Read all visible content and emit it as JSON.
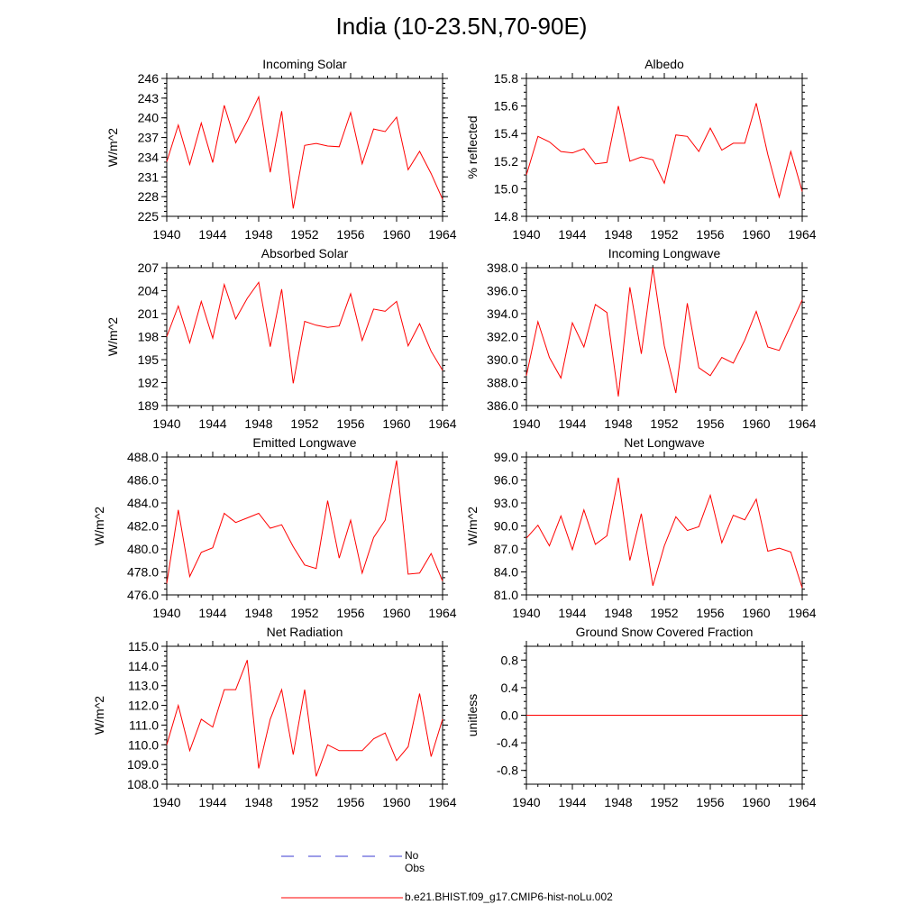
{
  "title": "India (10-23.5N,70-90E)",
  "legend": [
    {
      "label": "No Obs",
      "color": "#3a3ad0",
      "dashed": true
    },
    {
      "label": "b.e21.BHIST.f09_g17.CMIP6-hist-noLu.002",
      "color": "#ff0000",
      "dashed": false
    }
  ],
  "chart_data": [
    {
      "type": "line",
      "title": "Incoming Solar",
      "ylabel": "W/m^2",
      "xlim": [
        1940,
        1964
      ],
      "ylim": [
        225,
        246
      ],
      "yticks": [
        "225",
        "228",
        "231",
        "234",
        "237",
        "240",
        "243",
        "246"
      ],
      "xticks": [
        "1940",
        "1944",
        "1948",
        "1952",
        "1956",
        "1960",
        "1964"
      ],
      "series": [
        {
          "x": [
            1940,
            1941,
            1942,
            1943,
            1944,
            1945,
            1946,
            1947,
            1948,
            1949,
            1950,
            1951,
            1952,
            1953,
            1954,
            1955,
            1956,
            1957,
            1958,
            1959,
            1960,
            1961,
            1962,
            1963,
            1964
          ],
          "values": [
            233.3,
            238.9,
            232.9,
            239.2,
            233.2,
            241.9,
            236.2,
            239.5,
            243.2,
            231.7,
            241.0,
            226.2,
            235.8,
            236.1,
            235.7,
            235.6,
            240.8,
            233.0,
            238.3,
            237.9,
            240.1,
            232.1,
            234.9,
            231.5,
            227.6
          ]
        }
      ]
    },
    {
      "type": "line",
      "title": "Albedo",
      "ylabel": "% reflected",
      "xlim": [
        1940,
        1964
      ],
      "ylim": [
        14.8,
        15.8
      ],
      "yticks": [
        "14.8",
        "15.0",
        "15.2",
        "15.4",
        "15.6",
        "15.8"
      ],
      "xticks": [
        "1940",
        "1944",
        "1948",
        "1952",
        "1956",
        "1960",
        "1964"
      ],
      "series": [
        {
          "x": [
            1940,
            1941,
            1942,
            1943,
            1944,
            1945,
            1946,
            1947,
            1948,
            1949,
            1950,
            1951,
            1952,
            1953,
            1954,
            1955,
            1956,
            1957,
            1958,
            1959,
            1960,
            1961,
            1962,
            1963,
            1964
          ],
          "values": [
            15.1,
            15.38,
            15.34,
            15.27,
            15.26,
            15.29,
            15.18,
            15.19,
            15.6,
            15.2,
            15.23,
            15.21,
            15.04,
            15.39,
            15.38,
            15.27,
            15.44,
            15.28,
            15.33,
            15.33,
            15.62,
            15.25,
            14.94,
            15.27,
            14.98
          ]
        }
      ]
    },
    {
      "type": "line",
      "title": "Absorbed Solar",
      "ylabel": "W/m^2",
      "xlim": [
        1940,
        1964
      ],
      "ylim": [
        189,
        207
      ],
      "yticks": [
        "189",
        "192",
        "195",
        "198",
        "201",
        "204",
        "207"
      ],
      "xticks": [
        "1940",
        "1944",
        "1948",
        "1952",
        "1956",
        "1960",
        "1964"
      ],
      "series": [
        {
          "x": [
            1940,
            1941,
            1942,
            1943,
            1944,
            1945,
            1946,
            1947,
            1948,
            1949,
            1950,
            1951,
            1952,
            1953,
            1954,
            1955,
            1956,
            1957,
            1958,
            1959,
            1960,
            1961,
            1962,
            1963,
            1964
          ],
          "values": [
            198.0,
            202.0,
            197.2,
            202.6,
            197.8,
            204.8,
            200.3,
            203.0,
            205.1,
            196.7,
            204.2,
            191.9,
            200.0,
            199.5,
            199.2,
            199.4,
            203.6,
            197.5,
            201.6,
            201.3,
            202.6,
            196.8,
            199.7,
            196.1,
            193.6
          ]
        }
      ]
    },
    {
      "type": "line",
      "title": "Incoming Longwave",
      "ylabel": "",
      "xlim": [
        1940,
        1964
      ],
      "ylim": [
        386.0,
        398.0
      ],
      "yticks": [
        "386.0",
        "388.0",
        "390.0",
        "392.0",
        "394.0",
        "396.0",
        "398.0"
      ],
      "xticks": [
        "1940",
        "1944",
        "1948",
        "1952",
        "1956",
        "1960",
        "1964"
      ],
      "series": [
        {
          "x": [
            1940,
            1941,
            1942,
            1943,
            1944,
            1945,
            1946,
            1947,
            1948,
            1949,
            1950,
            1951,
            1952,
            1953,
            1954,
            1955,
            1956,
            1957,
            1958,
            1959,
            1960,
            1961,
            1962,
            1963,
            1964
          ],
          "values": [
            388.6,
            393.3,
            390.2,
            388.4,
            393.2,
            391.1,
            394.8,
            394.1,
            386.8,
            396.3,
            390.5,
            398.0,
            391.2,
            387.1,
            394.9,
            389.3,
            388.6,
            390.2,
            389.7,
            391.7,
            394.2,
            391.1,
            390.8,
            393.0,
            395.2
          ]
        }
      ]
    },
    {
      "type": "line",
      "title": "Emitted Longwave",
      "ylabel": "W/m^2",
      "xlim": [
        1940,
        1964
      ],
      "ylim": [
        476.0,
        488.0
      ],
      "yticks": [
        "476.0",
        "478.0",
        "480.0",
        "482.0",
        "484.0",
        "486.0",
        "488.0"
      ],
      "xticks": [
        "1940",
        "1944",
        "1948",
        "1952",
        "1956",
        "1960",
        "1964"
      ],
      "series": [
        {
          "x": [
            1940,
            1941,
            1942,
            1943,
            1944,
            1945,
            1946,
            1947,
            1948,
            1949,
            1950,
            1951,
            1952,
            1953,
            1954,
            1955,
            1956,
            1957,
            1958,
            1959,
            1960,
            1961,
            1962,
            1963,
            1964
          ],
          "values": [
            477.0,
            483.4,
            477.6,
            479.7,
            480.1,
            483.1,
            482.3,
            482.7,
            483.1,
            481.8,
            482.1,
            480.2,
            478.6,
            478.3,
            484.2,
            479.2,
            482.5,
            477.9,
            481.0,
            482.5,
            487.7,
            477.8,
            477.9,
            479.6,
            477.2
          ]
        }
      ]
    },
    {
      "type": "line",
      "title": "Net Longwave",
      "ylabel": "W/m^2",
      "xlim": [
        1940,
        1964
      ],
      "ylim": [
        81.0,
        99.0
      ],
      "yticks": [
        "81.0",
        "84.0",
        "87.0",
        "90.0",
        "93.0",
        "96.0",
        "99.0"
      ],
      "xticks": [
        "1940",
        "1944",
        "1948",
        "1952",
        "1956",
        "1960",
        "1964"
      ],
      "series": [
        {
          "x": [
            1940,
            1941,
            1942,
            1943,
            1944,
            1945,
            1946,
            1947,
            1948,
            1949,
            1950,
            1951,
            1952,
            1953,
            1954,
            1955,
            1956,
            1957,
            1958,
            1959,
            1960,
            1961,
            1962,
            1963,
            1964
          ],
          "values": [
            88.4,
            90.1,
            87.4,
            91.3,
            86.9,
            92.1,
            87.6,
            88.7,
            96.3,
            85.5,
            91.6,
            82.2,
            87.4,
            91.2,
            89.4,
            89.9,
            94.0,
            87.8,
            91.4,
            90.8,
            93.5,
            86.7,
            87.1,
            86.6,
            81.9
          ]
        }
      ]
    },
    {
      "type": "line",
      "title": "Net Radiation",
      "ylabel": "W/m^2",
      "xlim": [
        1940,
        1964
      ],
      "ylim": [
        108.0,
        115.0
      ],
      "yticks": [
        "108.0",
        "109.0",
        "110.0",
        "111.0",
        "112.0",
        "113.0",
        "114.0",
        "115.0"
      ],
      "xticks": [
        "1940",
        "1944",
        "1948",
        "1952",
        "1956",
        "1960",
        "1964"
      ],
      "series": [
        {
          "x": [
            1940,
            1941,
            1942,
            1943,
            1944,
            1945,
            1946,
            1947,
            1948,
            1949,
            1950,
            1951,
            1952,
            1953,
            1954,
            1955,
            1956,
            1957,
            1958,
            1959,
            1960,
            1961,
            1962,
            1963,
            1964
          ],
          "values": [
            110.0,
            112.0,
            109.7,
            111.3,
            110.9,
            112.8,
            112.8,
            114.3,
            108.8,
            111.3,
            112.8,
            109.5,
            112.8,
            108.4,
            110.0,
            109.7,
            109.7,
            109.7,
            110.3,
            110.6,
            109.2,
            109.9,
            112.6,
            109.4,
            111.3
          ]
        }
      ]
    },
    {
      "type": "line",
      "title": "Ground Snow Covered Fraction",
      "ylabel": "unitless",
      "xlim": [
        1940,
        1964
      ],
      "ylim": [
        -1.0,
        1.0
      ],
      "yticks": [
        "-0.8",
        "-0.4",
        "0.0",
        "0.4",
        "0.8"
      ],
      "ytick_values": [
        -0.8,
        -0.4,
        0.0,
        0.4,
        0.8
      ],
      "xticks": [
        "1940",
        "1944",
        "1948",
        "1952",
        "1956",
        "1960",
        "1964"
      ],
      "series": [
        {
          "x": [
            1940,
            1964
          ],
          "values": [
            0.0,
            0.0
          ]
        }
      ]
    }
  ]
}
